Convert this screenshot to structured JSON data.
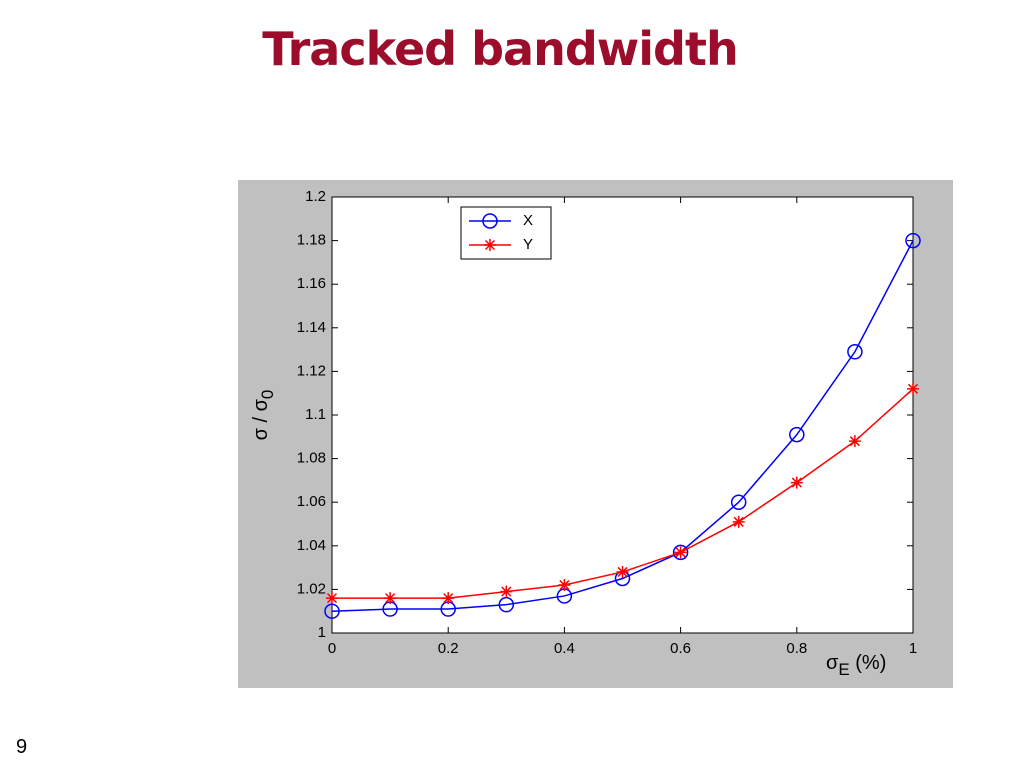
{
  "slide": {
    "title": "Tracked bandwidth",
    "page_number": "9"
  },
  "chart_data": {
    "type": "line",
    "xlabel": {
      "symbol": "σ",
      "subscript": "E",
      "suffix": " (%)"
    },
    "ylabel": {
      "symbol": "σ / σ",
      "subscript": "0"
    },
    "x": [
      0,
      0.1,
      0.2,
      0.3,
      0.4,
      0.5,
      0.6,
      0.7,
      0.8,
      0.9,
      1
    ],
    "series": [
      {
        "name": "X",
        "color": "#0000ff",
        "marker": "circle",
        "values": [
          1.01,
          1.011,
          1.011,
          1.013,
          1.017,
          1.025,
          1.037,
          1.06,
          1.091,
          1.129,
          1.18
        ]
      },
      {
        "name": "Y",
        "color": "#ff0000",
        "marker": "asterisk",
        "values": [
          1.016,
          1.016,
          1.016,
          1.019,
          1.022,
          1.028,
          1.037,
          1.051,
          1.069,
          1.088,
          1.112
        ]
      }
    ],
    "xlim": [
      0,
      1
    ],
    "xticks": [
      0,
      0.2,
      0.4,
      0.6,
      0.8,
      1
    ],
    "ylim": [
      1,
      1.2
    ],
    "yticks": [
      1,
      1.02,
      1.04,
      1.06,
      1.08,
      1.1,
      1.12,
      1.14,
      1.16,
      1.18,
      1.2
    ],
    "grid": false,
    "legend": "top-center"
  }
}
